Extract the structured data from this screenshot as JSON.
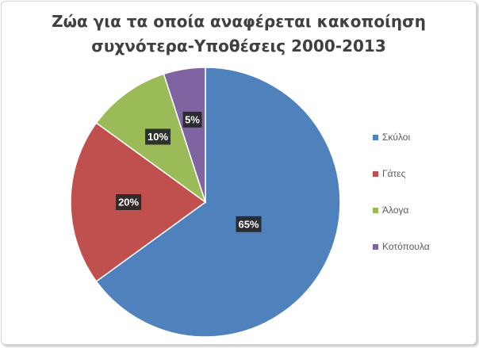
{
  "chart_data": {
    "type": "pie",
    "title": "Ζώα για τα οποία αναφέρεται κακοποίηση συχνότερα-Υποθέσεις 2000-2013",
    "title_lines": [
      "Ζώα για τα οποία αναφέρεται κακοποίηση",
      "συχνότερα-Υποθέσεις 2000-2013"
    ],
    "categories": [
      "Σκύλοι",
      "Γάτες",
      "Άλογα",
      "Κοτόπουλα"
    ],
    "values": [
      65,
      20,
      10,
      5
    ],
    "data_labels": [
      "65%",
      "20%",
      "10%",
      "5%"
    ],
    "colors": [
      "#4f81bd",
      "#c0504d",
      "#9bbb59",
      "#8064a2"
    ],
    "legend_position": "right"
  }
}
